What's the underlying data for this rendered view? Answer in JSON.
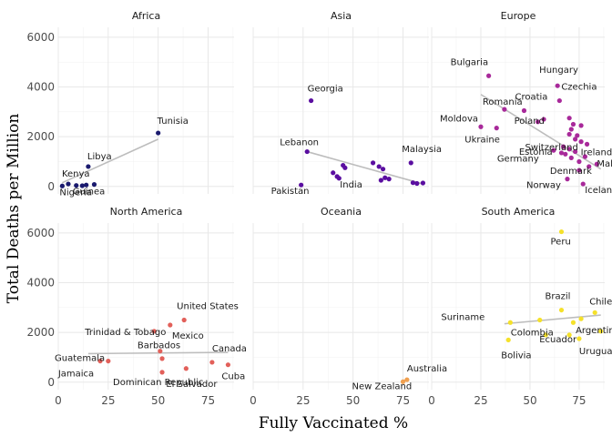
{
  "chart_data": {
    "type": "scatter",
    "xlabel": "Fully Vaccinated %",
    "ylabel": "Total Deaths per Million",
    "xlim": [
      0,
      88
    ],
    "ylim": [
      -300,
      6400
    ],
    "x_ticks": [
      0,
      25,
      50,
      75
    ],
    "y_ticks": [
      0,
      2000,
      4000,
      6000
    ],
    "grid": true,
    "facet_layout": "3 columns x 2 rows",
    "facets": [
      {
        "name": "Africa",
        "color": "#1a1a6e",
        "trend": [
          [
            2,
            150
          ],
          [
            50,
            1900
          ]
        ],
        "points": [
          {
            "label": "Tunisia",
            "x": 50,
            "y": 2150
          },
          {
            "label": "Libya",
            "x": 15,
            "y": 800
          },
          {
            "label": "Kenya",
            "x": 5,
            "y": 100
          },
          {
            "label": "Nigeria",
            "x": 2,
            "y": 20
          },
          {
            "label": "Guinea",
            "x": 9,
            "y": 40
          },
          {
            "label": "",
            "x": 14,
            "y": 60
          },
          {
            "label": "",
            "x": 18,
            "y": 80
          },
          {
            "label": "",
            "x": 12,
            "y": 30
          }
        ]
      },
      {
        "name": "Asia",
        "color": "#5a0ea0",
        "trend": [
          [
            27,
            1400
          ],
          [
            85,
            100
          ]
        ],
        "points": [
          {
            "label": "Georgia",
            "x": 29,
            "y": 3450
          },
          {
            "label": "Lebanon",
            "x": 27,
            "y": 1400
          },
          {
            "label": "Malaysia",
            "x": 79,
            "y": 950
          },
          {
            "label": "Pakistan",
            "x": 24,
            "y": 60
          },
          {
            "label": "India",
            "x": 43,
            "y": 330
          },
          {
            "label": "",
            "x": 40,
            "y": 550
          },
          {
            "label": "",
            "x": 42,
            "y": 400
          },
          {
            "label": "",
            "x": 45,
            "y": 850
          },
          {
            "label": "",
            "x": 46,
            "y": 750
          },
          {
            "label": "",
            "x": 60,
            "y": 950
          },
          {
            "label": "",
            "x": 63,
            "y": 800
          },
          {
            "label": "",
            "x": 64,
            "y": 250
          },
          {
            "label": "",
            "x": 65,
            "y": 700
          },
          {
            "label": "",
            "x": 66,
            "y": 350
          },
          {
            "label": "",
            "x": 68,
            "y": 300
          },
          {
            "label": "",
            "x": 80,
            "y": 150
          },
          {
            "label": "",
            "x": 82,
            "y": 120
          },
          {
            "label": "",
            "x": 85,
            "y": 140
          }
        ]
      },
      {
        "name": "Europe",
        "color": "#a8299a",
        "trend": [
          [
            25,
            3700
          ],
          [
            86,
            700
          ]
        ],
        "points": [
          {
            "label": "Bulgaria",
            "x": 29,
            "y": 4450
          },
          {
            "label": "Hungary",
            "x": 64,
            "y": 4050
          },
          {
            "label": "Romania",
            "x": 37,
            "y": 3100
          },
          {
            "label": "Croatia",
            "x": 47,
            "y": 3050
          },
          {
            "label": "Czechia",
            "x": 65,
            "y": 3450
          },
          {
            "label": "Moldova",
            "x": 25,
            "y": 2400
          },
          {
            "label": "Poland",
            "x": 54,
            "y": 2600
          },
          {
            "label": "Ukraine",
            "x": 33,
            "y": 2350
          },
          {
            "label": "Switzerland",
            "x": 66,
            "y": 1350
          },
          {
            "label": "Estonia",
            "x": 62,
            "y": 1450
          },
          {
            "label": "Ireland",
            "x": 73,
            "y": 1400
          },
          {
            "label": "Germany",
            "x": 68,
            "y": 1300
          },
          {
            "label": "Malta",
            "x": 84,
            "y": 900
          },
          {
            "label": "Denmark",
            "x": 75,
            "y": 650
          },
          {
            "label": "Norway",
            "x": 69,
            "y": 300
          },
          {
            "label": "Iceland",
            "x": 77,
            "y": 100
          },
          {
            "label": "",
            "x": 57,
            "y": 2700
          },
          {
            "label": "",
            "x": 70,
            "y": 2750
          },
          {
            "label": "",
            "x": 72,
            "y": 2500
          },
          {
            "label": "",
            "x": 71,
            "y": 2300
          },
          {
            "label": "",
            "x": 76,
            "y": 2450
          },
          {
            "label": "",
            "x": 74,
            "y": 2050
          },
          {
            "label": "",
            "x": 70,
            "y": 2100
          },
          {
            "label": "",
            "x": 73,
            "y": 1900
          },
          {
            "label": "",
            "x": 76,
            "y": 1800
          },
          {
            "label": "",
            "x": 79,
            "y": 1700
          },
          {
            "label": "",
            "x": 67,
            "y": 1600
          },
          {
            "label": "",
            "x": 70,
            "y": 1500
          },
          {
            "label": "",
            "x": 71,
            "y": 1150
          },
          {
            "label": "",
            "x": 78,
            "y": 1200
          },
          {
            "label": "",
            "x": 75,
            "y": 1000
          },
          {
            "label": "",
            "x": 80,
            "y": 800
          }
        ]
      },
      {
        "name": "North America",
        "color": "#e2605a",
        "trend": [
          [
            15,
            1150
          ],
          [
            85,
            1200
          ]
        ],
        "points": [
          {
            "label": "United States",
            "x": 63,
            "y": 2500
          },
          {
            "label": "Trinidad & Tobago",
            "x": 48,
            "y": 2050
          },
          {
            "label": "Mexico",
            "x": 56,
            "y": 2300
          },
          {
            "label": "Barbados",
            "x": 51,
            "y": 1250
          },
          {
            "label": "Canada",
            "x": 77,
            "y": 800
          },
          {
            "label": "Guatemala",
            "x": 21,
            "y": 850
          },
          {
            "label": "Jamaica",
            "x": 25,
            "y": 850
          },
          {
            "label": "Cuba",
            "x": 85,
            "y": 700
          },
          {
            "label": "Dominican Republic",
            "x": 52,
            "y": 400
          },
          {
            "label": "El Salvador",
            "x": 64,
            "y": 550
          },
          {
            "label": "",
            "x": 52,
            "y": 950
          }
        ]
      },
      {
        "name": "Oceania",
        "color": "#f0a050",
        "trend": [
          [
            74,
            20
          ],
          [
            78,
            120
          ]
        ],
        "points": [
          {
            "label": "Australia",
            "x": 77,
            "y": 100
          },
          {
            "label": "New Zealand",
            "x": 75,
            "y": 20
          }
        ]
      },
      {
        "name": "South America",
        "color": "#f5e12a",
        "trend": [
          [
            37,
            2350
          ],
          [
            86,
            2700
          ]
        ],
        "points": [
          {
            "label": "Peru",
            "x": 66,
            "y": 6050
          },
          {
            "label": "Brazil",
            "x": 66,
            "y": 2900
          },
          {
            "label": "Chile",
            "x": 83,
            "y": 2800
          },
          {
            "label": "Suriname",
            "x": 40,
            "y": 2400
          },
          {
            "label": "Colombia",
            "x": 55,
            "y": 2500
          },
          {
            "label": "Ecuador",
            "x": 58,
            "y": 1900
          },
          {
            "label": "Argentina",
            "x": 76,
            "y": 2550
          },
          {
            "label": "Bolivia",
            "x": 39,
            "y": 1700
          },
          {
            "label": "Uruguay",
            "x": 75,
            "y": 1750
          },
          {
            "label": "",
            "x": 70,
            "y": 1900
          },
          {
            "label": "",
            "x": 86,
            "y": 2050
          },
          {
            "label": "",
            "x": 72,
            "y": 2400
          }
        ]
      }
    ]
  }
}
